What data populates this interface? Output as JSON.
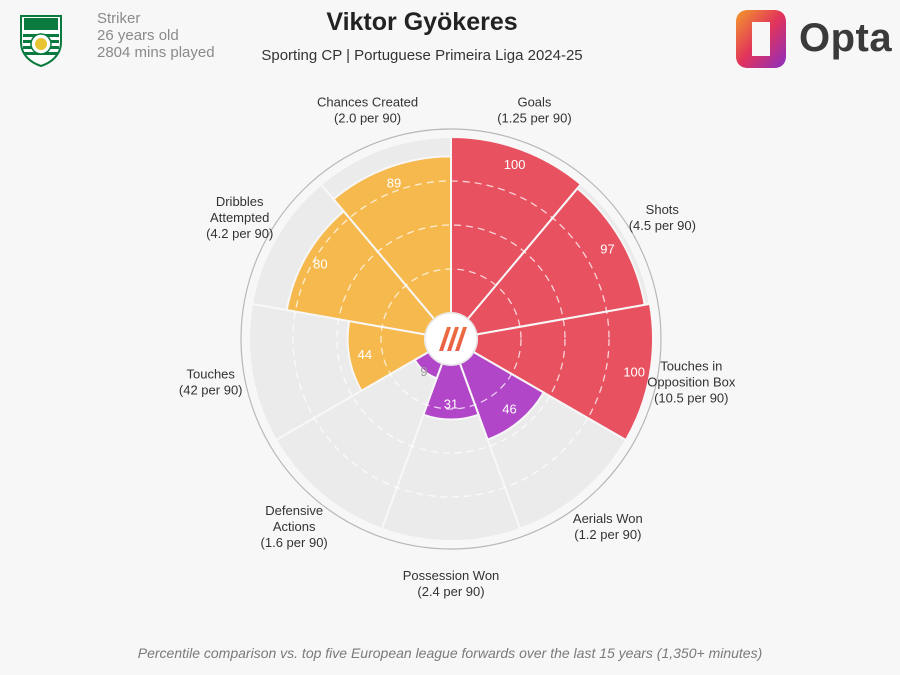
{
  "player": {
    "name": "Viktor Gyökeres",
    "position": "Striker",
    "age": "26 years old",
    "minutes": "2804 mins played",
    "team_season": "Sporting CP | Portuguese Primeira Liga 2024-25"
  },
  "brand": {
    "name": "Opta"
  },
  "footer": "Percentile comparison vs. top five European league forwards over the last 15 years (1,350+ minutes)",
  "colors": {
    "attacking": "#e85160",
    "possession": "#f6b94d",
    "defending": "#b246c8",
    "empty": "#ebebeb",
    "background": "#f7f7f7"
  },
  "chart_data": {
    "type": "polar-bar",
    "scale": [
      0,
      100
    ],
    "metrics": [
      {
        "label_lines": [
          "Goals",
          "(1.25 per 90)"
        ],
        "percentile": 100,
        "group": "attacking"
      },
      {
        "label_lines": [
          "Shots",
          "(4.5 per 90)"
        ],
        "percentile": 97,
        "group": "attacking"
      },
      {
        "label_lines": [
          "Touches in",
          "Opposition Box",
          "(10.5 per 90)"
        ],
        "percentile": 100,
        "group": "attacking"
      },
      {
        "label_lines": [
          "Aerials Won",
          "(1.2 per 90)"
        ],
        "percentile": 46,
        "group": "defending"
      },
      {
        "label_lines": [
          "Possession Won",
          "(2.4 per 90)"
        ],
        "percentile": 31,
        "group": "defending"
      },
      {
        "label_lines": [
          "Defensive",
          "Actions",
          "(1.6 per 90)"
        ],
        "percentile": 9,
        "group": "defending"
      },
      {
        "label_lines": [
          "Touches",
          "(42 per 90)"
        ],
        "percentile": 44,
        "group": "possession"
      },
      {
        "label_lines": [
          "Dribbles",
          "Attempted",
          "(4.2 per 90)"
        ],
        "percentile": 80,
        "group": "possession"
      },
      {
        "label_lines": [
          "Chances Created",
          "(2.0 per 90)"
        ],
        "percentile": 89,
        "group": "possession"
      }
    ]
  }
}
